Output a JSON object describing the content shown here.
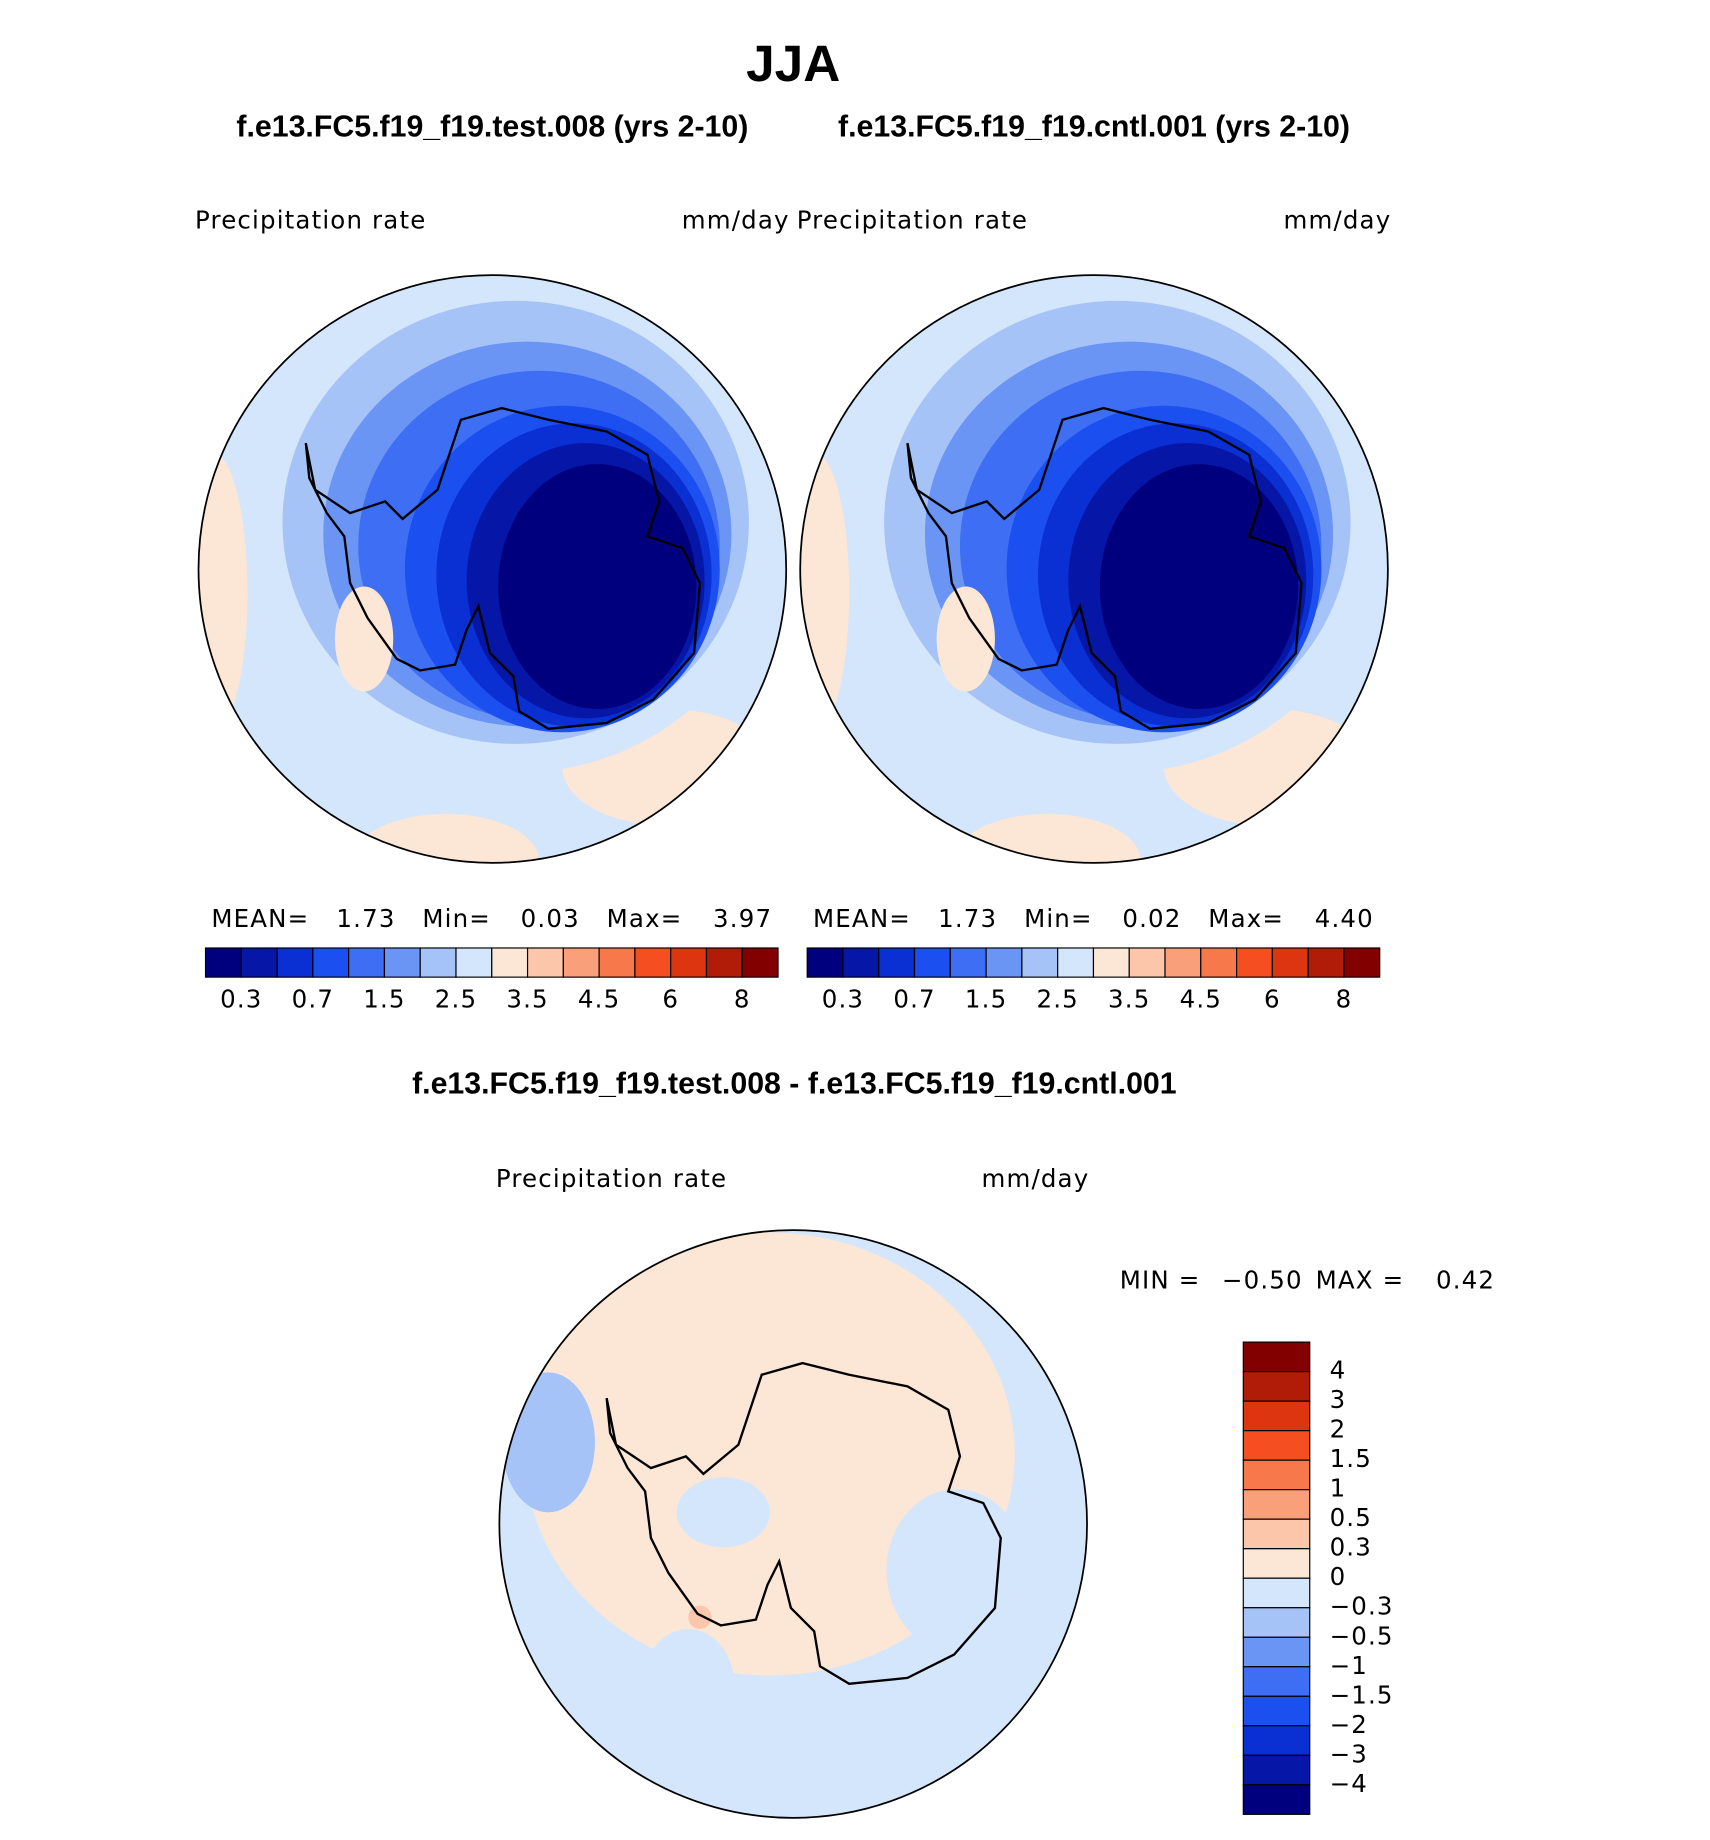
{
  "title": "JJA",
  "panels": [
    {
      "case_title": "f.e13.FC5.f19_f19.test.008 (yrs 2-10)",
      "variable": "Precipitation  rate",
      "units": "mm/day",
      "stats": [
        {
          "label": "MEAN=",
          "value": "1.73"
        },
        {
          "label": "Min=",
          "value": "0.03"
        },
        {
          "label": "Max=",
          "value": "3.97"
        }
      ],
      "colorbar_labels": [
        "0.3",
        "0.7",
        "1.5",
        "2.5",
        "3.5",
        "4.5",
        "6",
        "8"
      ]
    },
    {
      "case_title": "f.e13.FC5.f19_f19.cntl.001 (yrs 2-10)",
      "variable": "Precipitation  rate",
      "units": "mm/day",
      "stats": [
        {
          "label": "MEAN=",
          "value": "1.73"
        },
        {
          "label": "Min=",
          "value": "0.02"
        },
        {
          "label": "Max=",
          "value": "4.40"
        }
      ],
      "colorbar_labels": [
        "0.3",
        "0.7",
        "1.5",
        "2.5",
        "3.5",
        "4.5",
        "6",
        "8"
      ]
    }
  ],
  "difference": {
    "title": "f.e13.FC5.f19_f19.test.008 - f.e13.FC5.f19_f19.cntl.001",
    "variable": "Precipitation  rate",
    "units": "mm/day",
    "stats": [
      {
        "label": "MIN =",
        "value": "−0.50"
      },
      {
        "label": "MAX =",
        "value": "0.42"
      }
    ],
    "colorbar_labels": [
      "4",
      "3",
      "2",
      "1.5",
      "1",
      "0.5",
      "0.3",
      "0",
      "−0.3",
      "−0.5",
      "−1",
      "−1.5",
      "−2",
      "−3",
      "−4"
    ]
  },
  "palette": [
    "#00007f",
    "#0616a6",
    "#0a2fd2",
    "#1c4ff0",
    "#3d6ef3",
    "#6a95f5",
    "#a6c3f8",
    "#d4e6fc",
    "#fce6d6",
    "#fbc6aa",
    "#f9a07a",
    "#f7784a",
    "#f54e20",
    "#dc3510",
    "#b11c08",
    "#820000"
  ]
}
